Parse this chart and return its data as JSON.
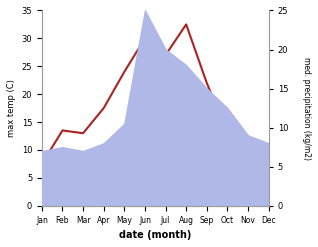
{
  "months": [
    "Jan",
    "Feb",
    "Mar",
    "Apr",
    "May",
    "Jun",
    "Jul",
    "Aug",
    "Sep",
    "Oct",
    "Nov",
    "Dec"
  ],
  "temp": [
    7.5,
    13.5,
    13.0,
    17.5,
    24.0,
    30.0,
    27.0,
    32.5,
    22.0,
    13.0,
    8.0,
    7.5
  ],
  "precip": [
    7.0,
    7.5,
    7.0,
    8.0,
    10.5,
    25.0,
    20.0,
    18.0,
    15.0,
    12.5,
    9.0,
    8.0
  ],
  "temp_color": "#aa2222",
  "precip_color": "#b0b8e8",
  "temp_ylim": [
    0,
    35
  ],
  "precip_ylim": [
    0,
    25
  ],
  "xlabel": "date (month)",
  "ylabel_left": "max temp (C)",
  "ylabel_right": "med. precipitation (kg/m2)",
  "bg_color": "#ffffff",
  "fig_width": 3.18,
  "fig_height": 2.47,
  "dpi": 100
}
